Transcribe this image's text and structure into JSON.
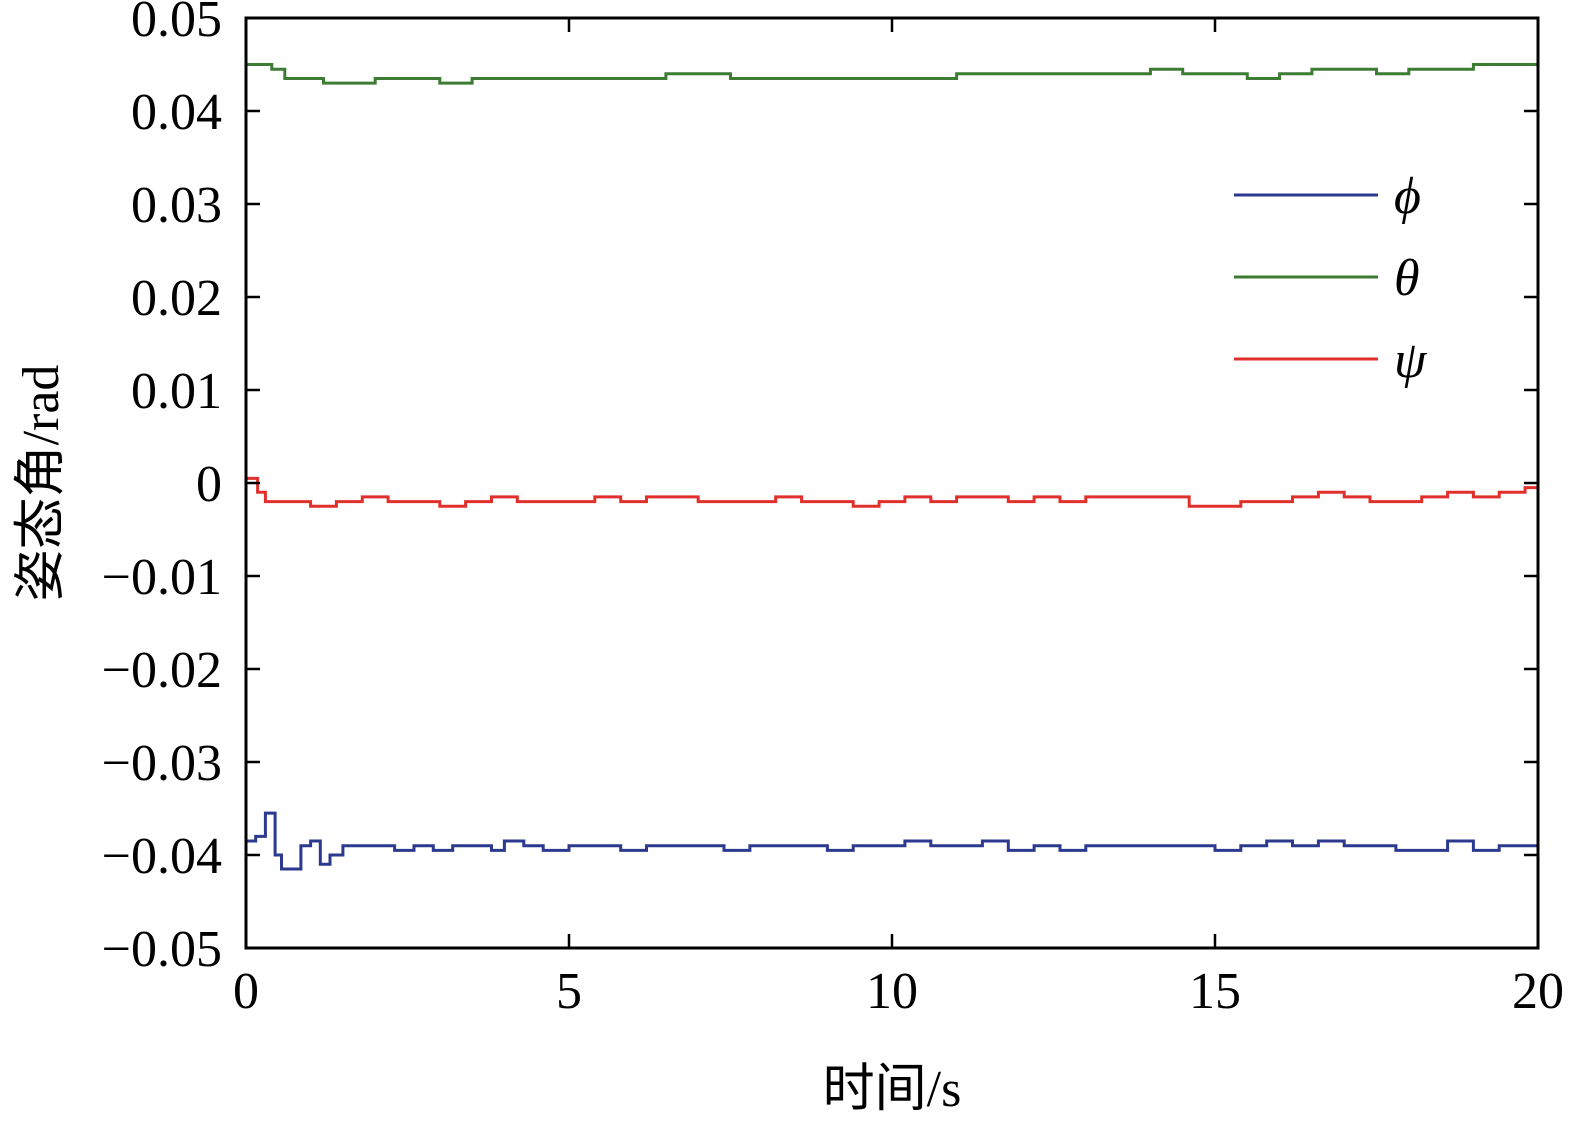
{
  "chart_data": {
    "type": "line",
    "title": "",
    "xlabel": "时间/s",
    "ylabel": "姿态角/rad",
    "xlim": [
      0,
      20
    ],
    "ylim": [
      -0.05,
      0.05
    ],
    "x_ticks": [
      0,
      5,
      10,
      15,
      20
    ],
    "x_tick_labels": [
      "0",
      "5",
      "10",
      "15",
      "20"
    ],
    "y_ticks": [
      0.05,
      0.04,
      0.03,
      0.02,
      0.01,
      0,
      -0.01,
      -0.02,
      -0.03,
      -0.04,
      -0.05
    ],
    "y_tick_labels": [
      "0.05",
      "0.04",
      "0.03",
      "0.02",
      "0.01",
      "0",
      "−0.01",
      "−0.02",
      "−0.03",
      "−0.04",
      "−0.05"
    ],
    "grid": false,
    "legend_position": "upper-right",
    "series": [
      {
        "name": "ϕ",
        "color": "#2b3a8f",
        "x": [
          0,
          0.15,
          0.3,
          0.45,
          0.55,
          0.7,
          0.85,
          1.0,
          1.15,
          1.3,
          1.5,
          1.7,
          2.0,
          2.3,
          2.6,
          2.9,
          3.2,
          3.5,
          3.8,
          4.0,
          4.3,
          4.6,
          5.0,
          5.4,
          5.8,
          6.2,
          6.6,
          7.0,
          7.4,
          7.8,
          8.2,
          8.6,
          9.0,
          9.4,
          9.8,
          10.2,
          10.6,
          11.0,
          11.4,
          11.8,
          12.2,
          12.6,
          13.0,
          13.4,
          13.8,
          14.2,
          14.6,
          15.0,
          15.4,
          15.8,
          16.2,
          16.6,
          17.0,
          17.4,
          17.8,
          18.2,
          18.6,
          19.0,
          19.4,
          19.7,
          20.0
        ],
        "y": [
          -0.0385,
          -0.038,
          -0.0355,
          -0.04,
          -0.0415,
          -0.0415,
          -0.039,
          -0.0385,
          -0.041,
          -0.04,
          -0.039,
          -0.039,
          -0.039,
          -0.0395,
          -0.039,
          -0.0395,
          -0.039,
          -0.039,
          -0.0395,
          -0.0385,
          -0.039,
          -0.0395,
          -0.039,
          -0.039,
          -0.0395,
          -0.039,
          -0.039,
          -0.039,
          -0.0395,
          -0.039,
          -0.039,
          -0.039,
          -0.0395,
          -0.039,
          -0.039,
          -0.0385,
          -0.039,
          -0.039,
          -0.0385,
          -0.0395,
          -0.039,
          -0.0395,
          -0.039,
          -0.039,
          -0.039,
          -0.039,
          -0.039,
          -0.0395,
          -0.039,
          -0.0385,
          -0.039,
          -0.0385,
          -0.039,
          -0.039,
          -0.0395,
          -0.0395,
          -0.0385,
          -0.0395,
          -0.039,
          -0.039,
          -0.039
        ]
      },
      {
        "name": "θ",
        "color": "#3d7d33",
        "x": [
          0,
          0.2,
          0.4,
          0.6,
          0.8,
          1.0,
          1.2,
          1.5,
          2.0,
          2.5,
          3.0,
          3.5,
          4.0,
          5.0,
          6.0,
          6.5,
          7.0,
          7.5,
          8.0,
          8.5,
          9.0,
          9.5,
          10.0,
          11.0,
          12.0,
          12.5,
          13.0,
          14.0,
          14.5,
          15.0,
          15.5,
          16.0,
          16.5,
          17.0,
          17.5,
          18.0,
          18.5,
          19.0,
          19.5,
          20.0
        ],
        "y": [
          0.045,
          0.045,
          0.0445,
          0.0435,
          0.0435,
          0.0435,
          0.043,
          0.043,
          0.0435,
          0.0435,
          0.043,
          0.0435,
          0.0435,
          0.0435,
          0.0435,
          0.044,
          0.044,
          0.0435,
          0.0435,
          0.0435,
          0.0435,
          0.0435,
          0.0435,
          0.044,
          0.044,
          0.044,
          0.044,
          0.0445,
          0.044,
          0.044,
          0.0435,
          0.044,
          0.0445,
          0.0445,
          0.044,
          0.0445,
          0.0445,
          0.045,
          0.045,
          0.045
        ]
      },
      {
        "name": "ψ",
        "color": "#e0302c",
        "x": [
          0,
          0.12,
          0.18,
          0.3,
          0.5,
          0.8,
          1.0,
          1.4,
          1.8,
          2.2,
          2.6,
          3.0,
          3.4,
          3.8,
          4.2,
          4.6,
          5.0,
          5.4,
          5.8,
          6.2,
          6.6,
          7.0,
          7.4,
          7.8,
          8.2,
          8.6,
          9.0,
          9.4,
          9.8,
          10.2,
          10.6,
          11.0,
          11.4,
          11.8,
          12.2,
          12.6,
          13.0,
          13.4,
          13.8,
          14.2,
          14.6,
          15.0,
          15.4,
          15.8,
          16.2,
          16.6,
          17.0,
          17.4,
          17.8,
          18.2,
          18.6,
          19.0,
          19.4,
          19.8,
          20.0
        ],
        "y": [
          0.0005,
          0.0005,
          -0.001,
          -0.002,
          -0.002,
          -0.002,
          -0.0025,
          -0.002,
          -0.0015,
          -0.002,
          -0.002,
          -0.0025,
          -0.002,
          -0.0015,
          -0.002,
          -0.002,
          -0.002,
          -0.0015,
          -0.002,
          -0.0015,
          -0.0015,
          -0.002,
          -0.002,
          -0.002,
          -0.0015,
          -0.002,
          -0.002,
          -0.0025,
          -0.002,
          -0.0015,
          -0.002,
          -0.0015,
          -0.0015,
          -0.002,
          -0.0015,
          -0.002,
          -0.0015,
          -0.0015,
          -0.0015,
          -0.0015,
          -0.0025,
          -0.0025,
          -0.002,
          -0.002,
          -0.0015,
          -0.001,
          -0.0015,
          -0.002,
          -0.002,
          -0.0015,
          -0.001,
          -0.0015,
          -0.001,
          -0.0005,
          -0.0005
        ]
      }
    ]
  }
}
